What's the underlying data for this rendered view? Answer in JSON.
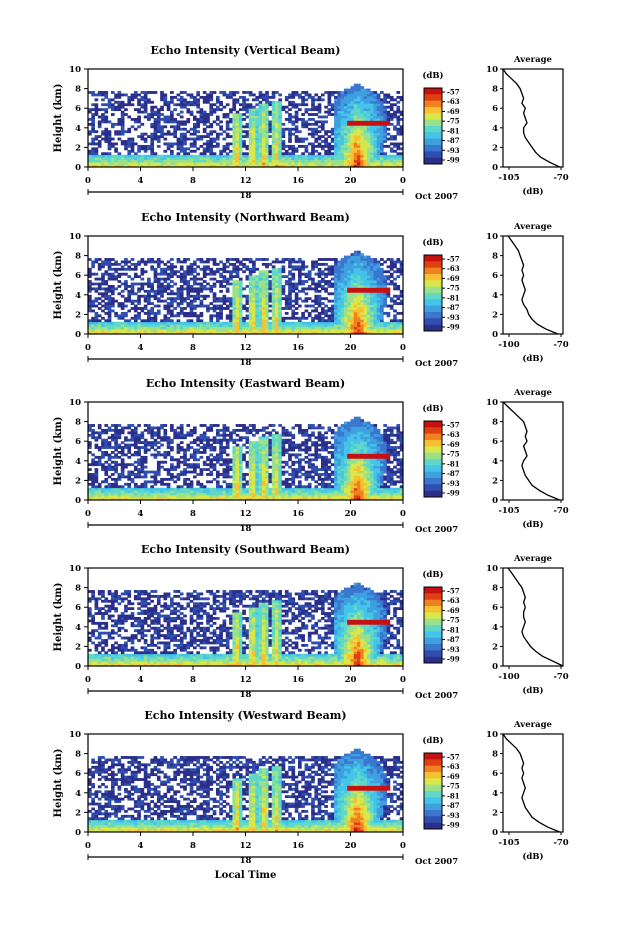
{
  "figure": {
    "xlabel": "Local Time",
    "date_label": "Oct 2007",
    "day_label": "18",
    "ylabel": "Height (km)",
    "colorbar_unit": "(dB)",
    "avg_title": "Average",
    "avg_xlabel": "(dB)"
  },
  "panels": [
    {
      "title": "Echo Intensity (Vertical Beam)",
      "avg_xticks": [
        "-105",
        "-70"
      ]
    },
    {
      "title": "Echo Intensity (Northward Beam)",
      "avg_xticks": [
        "-100",
        "-70"
      ]
    },
    {
      "title": "Echo Intensity (Eastward Beam)",
      "avg_xticks": [
        "-105",
        "-70"
      ]
    },
    {
      "title": "Echo Intensity (Southward Beam)",
      "avg_xticks": [
        "-100",
        "-70"
      ]
    },
    {
      "title": "Echo Intensity (Westward Beam)",
      "avg_xticks": [
        "-105",
        "-70"
      ]
    }
  ],
  "chart_data": [
    {
      "type": "heatmap",
      "x_ticks": [
        "0",
        "4",
        "8",
        "12",
        "16",
        "20",
        "0"
      ],
      "y_ticks": [
        "0",
        "2",
        "4",
        "6",
        "8",
        "10"
      ],
      "ylim": [
        0,
        10
      ],
      "colorbar_ticks": [
        "-57",
        "-63",
        "-69",
        "-75",
        "-81",
        "-87",
        "-93",
        "-99"
      ],
      "colorscale": [
        "#2b2f8a",
        "#2f4fb0",
        "#3a78d0",
        "#3fa0e0",
        "#44c4e8",
        "#5fd8c8",
        "#9be08a",
        "#d8e84a",
        "#f8c030",
        "#f08020",
        "#e04010",
        "#c81010"
      ]
    },
    {
      "type": "line",
      "title": "Average",
      "xlabel": "(dB)",
      "xlim": [
        -105,
        -70
      ],
      "ylim": [
        0,
        10
      ],
      "x_ticks": [
        "-105",
        "-70"
      ],
      "y_ticks": [
        "0",
        "2",
        "4",
        "6",
        "8",
        "10"
      ],
      "profiles": [
        {
          "beam": "Vertical",
          "height_km": [
            0,
            0.5,
            1,
            1.5,
            2,
            2.5,
            3,
            3.5,
            4,
            4.5,
            5,
            5.5,
            6,
            6.5,
            7,
            7.5,
            8,
            8.5,
            9,
            9.5,
            10
          ],
          "db": [
            -72,
            -78,
            -83,
            -86,
            -88,
            -90,
            -92,
            -93,
            -93,
            -91,
            -92,
            -93,
            -92,
            -94,
            -93,
            -94,
            -95,
            -97,
            -100,
            -103,
            -105
          ]
        },
        {
          "beam": "Northward",
          "height_km": [
            0,
            0.5,
            1,
            1.5,
            2,
            2.5,
            3,
            3.5,
            4,
            4.5,
            5,
            5.5,
            6,
            6.5,
            7,
            7.5,
            8,
            8.5,
            9,
            9.5,
            10
          ],
          "db": [
            -73,
            -80,
            -85,
            -88,
            -90,
            -91,
            -93,
            -94,
            -93,
            -92,
            -93,
            -94,
            -93,
            -94,
            -93,
            -94,
            -95,
            -96,
            -98,
            -100,
            -102
          ]
        },
        {
          "beam": "Eastward",
          "height_km": [
            0,
            0.5,
            1,
            1.5,
            2,
            2.5,
            3,
            3.5,
            4,
            4.5,
            5,
            5.5,
            6,
            6.5,
            7,
            7.5,
            8,
            8.5,
            9,
            9.5,
            10
          ],
          "db": [
            -72,
            -79,
            -84,
            -88,
            -90,
            -92,
            -93,
            -94,
            -93,
            -91,
            -92,
            -93,
            -91,
            -92,
            -91,
            -92,
            -93,
            -96,
            -99,
            -102,
            -105
          ]
        },
        {
          "beam": "Southward",
          "height_km": [
            0,
            0.5,
            1,
            1.5,
            2,
            2.5,
            3,
            3.5,
            4,
            4.5,
            5,
            5.5,
            6,
            6.5,
            7,
            7.5,
            8,
            8.5,
            9,
            9.5,
            10
          ],
          "db": [
            -70,
            -76,
            -82,
            -86,
            -89,
            -91,
            -93,
            -94,
            -93,
            -92,
            -93,
            -93,
            -92,
            -93,
            -92,
            -93,
            -94,
            -96,
            -98,
            -100,
            -102
          ]
        },
        {
          "beam": "Westward",
          "height_km": [
            0,
            0.5,
            1,
            1.5,
            2,
            2.5,
            3,
            3.5,
            4,
            4.5,
            5,
            5.5,
            6,
            6.5,
            7,
            7.5,
            8,
            8.5,
            9,
            9.5,
            10
          ],
          "db": [
            -72,
            -79,
            -84,
            -88,
            -90,
            -92,
            -93,
            -94,
            -93,
            -92,
            -93,
            -94,
            -93,
            -94,
            -93,
            -94,
            -95,
            -97,
            -100,
            -103,
            -105
          ]
        }
      ]
    }
  ]
}
